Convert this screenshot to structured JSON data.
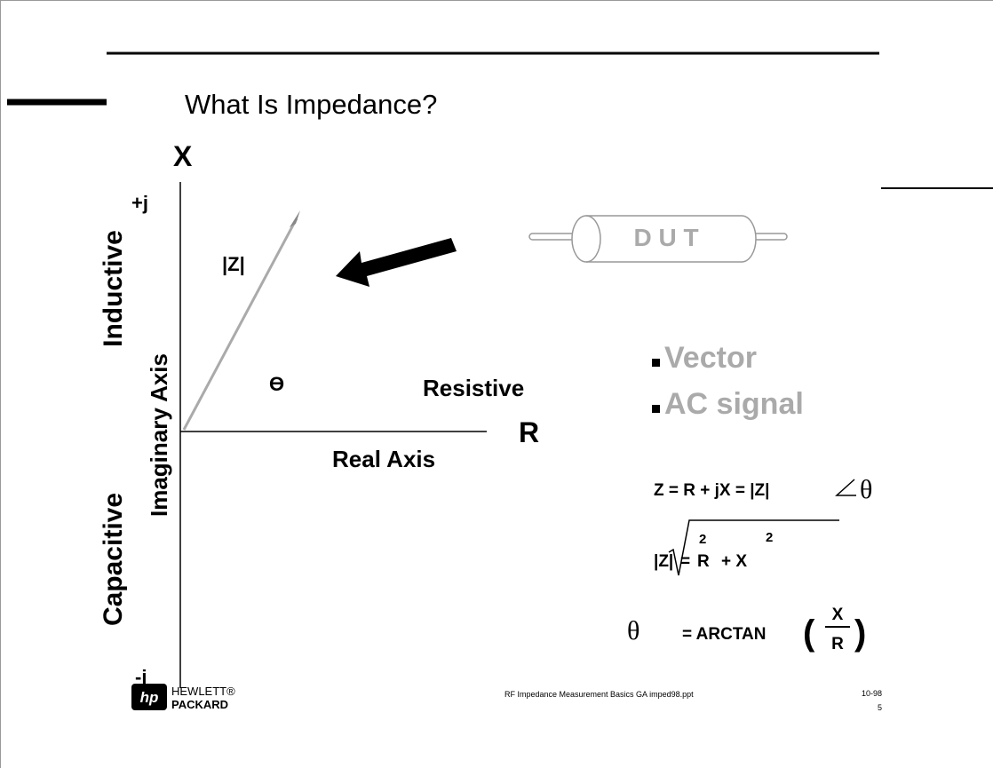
{
  "title": "What Is Impedance?",
  "diagram": {
    "y_axis_symbol": "X",
    "top_label": "+j",
    "bottom_label": "-j",
    "vector_label": "|Z|",
    "upper_region": "Inductive",
    "lower_region": "Capacitive",
    "y_axis_label": "Imaginary Axis",
    "angle_label": "ϴ",
    "x_region": "Resistive",
    "x_axis_symbol": "R",
    "x_axis_label": "Real Axis",
    "device": "D U T"
  },
  "bullets": [
    "Vector",
    "AC signal"
  ],
  "formulas": {
    "impedance": [
      "Z = R + jX = |Z|",
      "θ"
    ],
    "magnitude": [
      "|Z|",
      "=",
      "R",
      "2",
      "+ X",
      "2"
    ],
    "phase": [
      "θ",
      "= ARCTAN",
      "(",
      "X",
      "R",
      ")"
    ]
  },
  "footer": {
    "logo_mark": "hp",
    "company": [
      "HEWLETT®",
      "PACKARD"
    ],
    "caption": "RF Impedance Measurement Basics GA imped98.ppt",
    "date": "10-98",
    "page": "5"
  }
}
